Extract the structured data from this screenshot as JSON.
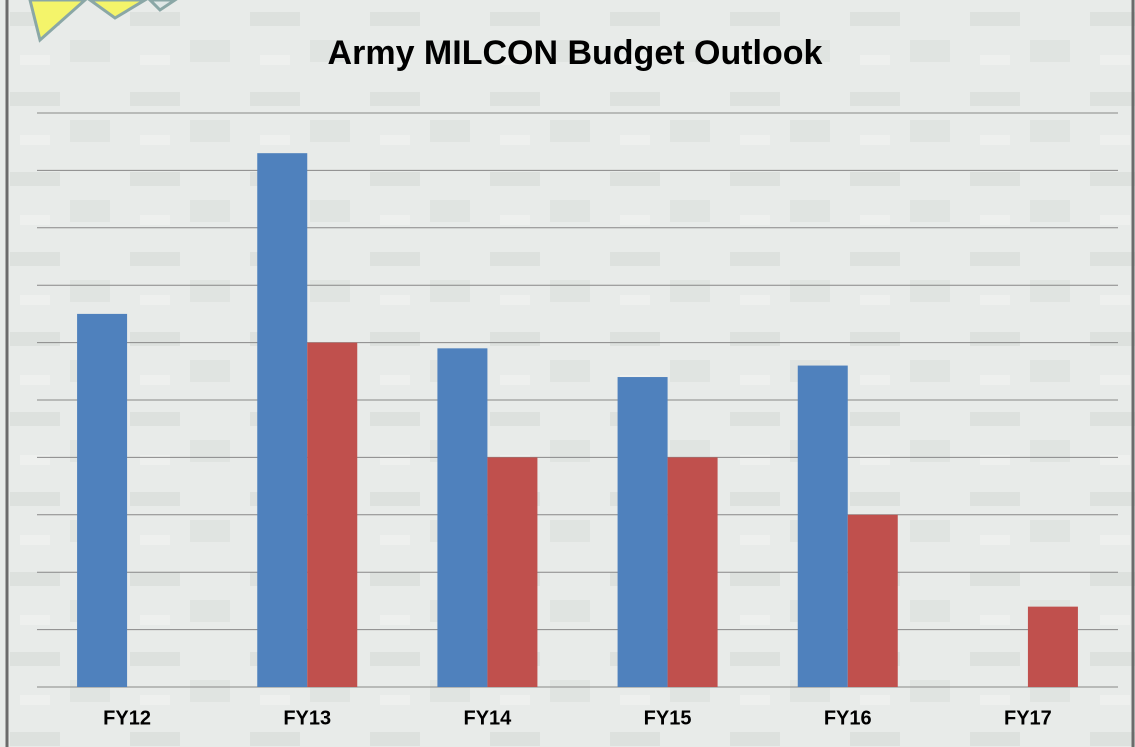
{
  "chart_data": {
    "type": "bar",
    "title": "Army MILCON Budget Outlook",
    "categories": [
      "FY12",
      "FY13",
      "FY14",
      "FY15",
      "FY16",
      "FY17"
    ],
    "series": [
      {
        "color": "#4f81bd",
        "values": [
          6.5,
          9.3,
          5.9,
          5.4,
          5.6,
          null
        ]
      },
      {
        "color": "#c0504d",
        "values": [
          null,
          6.0,
          4.0,
          4.0,
          3.0,
          1.4
        ]
      }
    ],
    "ylim": [
      0,
      10
    ],
    "gridlines": [
      0,
      1,
      2,
      3,
      4,
      5,
      6,
      7,
      8,
      9,
      10
    ],
    "grid": true
  }
}
